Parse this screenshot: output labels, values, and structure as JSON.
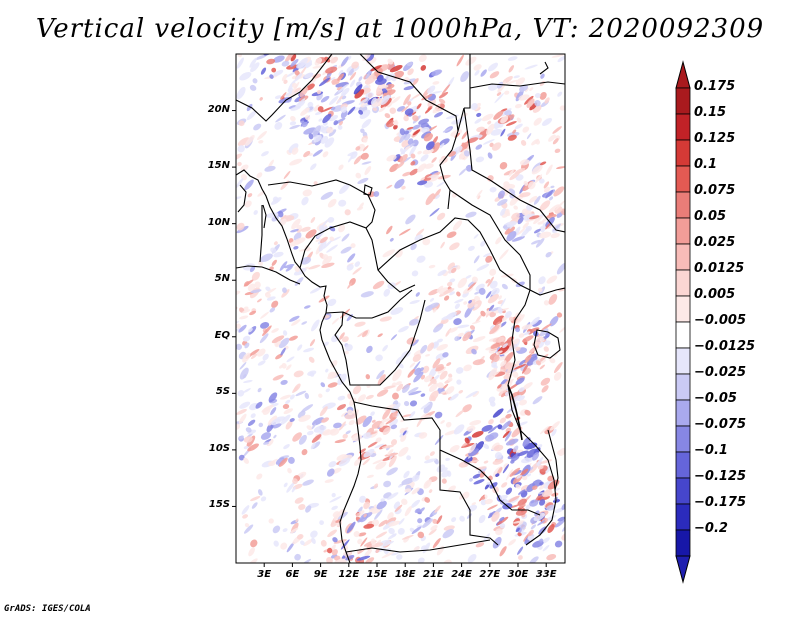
{
  "title": "Vertical velocity [m/s] at 1000hPa, VT: 2020092309",
  "credit": "GrADS: IGES/COLA",
  "map": {
    "projection": "latlon",
    "lon_range": [
      0,
      35
    ],
    "lat_range": [
      -20,
      25
    ],
    "land_color": "#ffffff",
    "border_color": "#000000",
    "lat_ticks": [
      {
        "value": 20,
        "label": "20N"
      },
      {
        "value": 15,
        "label": "15N"
      },
      {
        "value": 10,
        "label": "10N"
      },
      {
        "value": 5,
        "label": "5N"
      },
      {
        "value": 0,
        "label": "EQ"
      },
      {
        "value": -5,
        "label": "5S"
      },
      {
        "value": -10,
        "label": "10S"
      },
      {
        "value": -15,
        "label": "15S"
      }
    ],
    "lon_ticks": [
      {
        "value": 3,
        "label": "3E"
      },
      {
        "value": 6,
        "label": "6E"
      },
      {
        "value": 9,
        "label": "9E"
      },
      {
        "value": 12,
        "label": "12E"
      },
      {
        "value": 15,
        "label": "15E"
      },
      {
        "value": 18,
        "label": "18E"
      },
      {
        "value": 21,
        "label": "21E"
      },
      {
        "value": 24,
        "label": "24E"
      },
      {
        "value": 27,
        "label": "27E"
      },
      {
        "value": 30,
        "label": "30E"
      },
      {
        "value": 33,
        "label": "33E"
      }
    ]
  },
  "colorbar": {
    "levels": [
      {
        "label": "0.175",
        "color": "#a91a1e"
      },
      {
        "label": "0.15",
        "color": "#c12227"
      },
      {
        "label": "0.125",
        "color": "#d53a36"
      },
      {
        "label": "0.1",
        "color": "#e35a53"
      },
      {
        "label": "0.075",
        "color": "#ea7d78"
      },
      {
        "label": "0.05",
        "color": "#f29d98"
      },
      {
        "label": "0.025",
        "color": "#f8bcb8"
      },
      {
        "label": "0.0125",
        "color": "#fbd6d3"
      },
      {
        "label": "0.005",
        "color": "#fde9e7"
      },
      {
        "label": "−0.005",
        "color": "#ffffff"
      },
      {
        "label": "−0.0125",
        "color": "#e6e6fb"
      },
      {
        "label": "−0.025",
        "color": "#cacaf5"
      },
      {
        "label": "−0.05",
        "color": "#a9a9ee"
      },
      {
        "label": "−0.075",
        "color": "#8787e4"
      },
      {
        "label": "−0.1",
        "color": "#6565da"
      },
      {
        "label": "−0.125",
        "color": "#4646cc"
      },
      {
        "label": "−0.175",
        "color": "#2b2bbd"
      },
      {
        "label": "−0.2",
        "color": "#1717a8"
      }
    ],
    "top_extension_color": "#a91a1e",
    "bottom_extension_color": "#1f1fb0"
  }
}
